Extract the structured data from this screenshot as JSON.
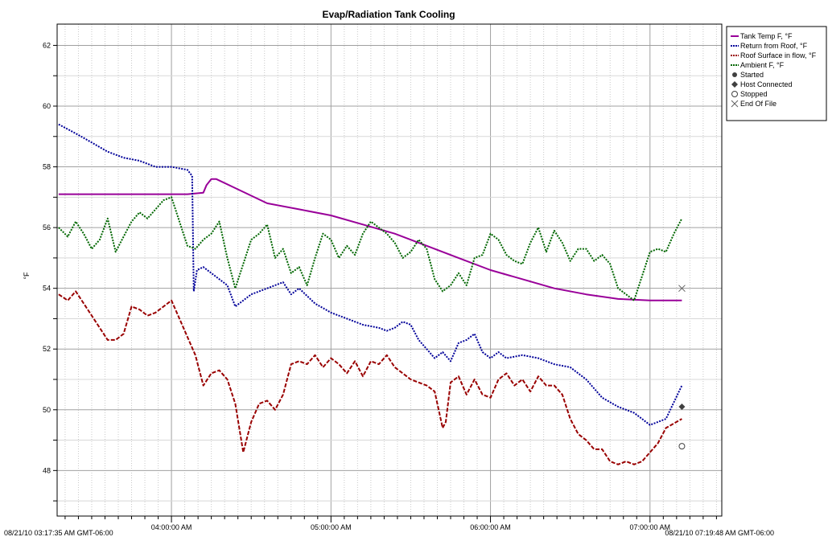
{
  "chart_data": {
    "type": "line",
    "title": "Evap/Radiation Tank Cooling",
    "ylabel": "°F",
    "ylim": [
      46.5,
      62.7
    ],
    "yticks": [
      48,
      50,
      52,
      54,
      56,
      58,
      60,
      62
    ],
    "xlim_hours": [
      3.2833,
      7.45
    ],
    "xticks": [
      {
        "hour": 4.0,
        "label": "04:00:00 AM"
      },
      {
        "hour": 5.0,
        "label": "05:00:00 AM"
      },
      {
        "hour": 6.0,
        "label": "06:00:00 AM"
      },
      {
        "hour": 7.0,
        "label": "07:00:00 AM"
      }
    ],
    "start_label": "08/21/10 03:17:35 AM GMT-06:00",
    "end_label": "08/21/10 07:19:48 AM GMT-06:00",
    "grid": true,
    "legend_position": "top-right",
    "series": [
      {
        "name": "Tank Temp F, °F",
        "color": "#990099",
        "dash": "solid",
        "x": [
          3.293,
          3.5,
          3.7,
          3.8,
          3.85,
          3.9,
          4.0,
          4.1,
          4.2,
          4.22,
          4.25,
          4.28,
          4.4,
          4.6,
          4.8,
          5.0,
          5.2,
          5.4,
          5.6,
          5.8,
          6.0,
          6.2,
          6.4,
          6.6,
          6.8,
          7.0,
          7.2
        ],
        "y": [
          57.1,
          57.1,
          57.1,
          57.1,
          57.1,
          57.1,
          57.1,
          57.1,
          57.15,
          57.4,
          57.6,
          57.6,
          57.3,
          56.8,
          56.6,
          56.4,
          56.1,
          55.8,
          55.4,
          55.0,
          54.6,
          54.3,
          54.0,
          53.8,
          53.65,
          53.6,
          53.6
        ]
      },
      {
        "name": "Return from Roof, °F",
        "color": "#000099",
        "dash": "dot",
        "x": [
          3.293,
          3.4,
          3.5,
          3.6,
          3.7,
          3.8,
          3.9,
          4.0,
          4.1,
          4.13,
          4.14,
          4.16,
          4.2,
          4.3,
          4.35,
          4.4,
          4.45,
          4.5,
          4.6,
          4.7,
          4.75,
          4.8,
          4.9,
          5.0,
          5.1,
          5.2,
          5.3,
          5.35,
          5.4,
          5.45,
          5.5,
          5.55,
          5.6,
          5.65,
          5.7,
          5.75,
          5.8,
          5.85,
          5.9,
          5.95,
          6.0,
          6.05,
          6.1,
          6.2,
          6.3,
          6.4,
          6.5,
          6.6,
          6.7,
          6.8,
          6.9,
          6.95,
          7.0,
          7.1,
          7.2
        ],
        "y": [
          59.4,
          59.1,
          58.8,
          58.5,
          58.3,
          58.2,
          58.0,
          58.0,
          57.9,
          57.7,
          53.9,
          54.6,
          54.7,
          54.3,
          54.1,
          53.4,
          53.6,
          53.8,
          54.0,
          54.2,
          53.8,
          54.0,
          53.5,
          53.2,
          53.0,
          52.8,
          52.7,
          52.6,
          52.7,
          52.9,
          52.8,
          52.3,
          52.0,
          51.7,
          51.9,
          51.6,
          52.2,
          52.3,
          52.5,
          51.9,
          51.7,
          51.9,
          51.7,
          51.8,
          51.7,
          51.5,
          51.4,
          51.0,
          50.4,
          50.1,
          49.9,
          49.7,
          49.5,
          49.7,
          50.8
        ]
      },
      {
        "name": "Roof Surface in flow, °F",
        "color": "#990000",
        "dash": "dash",
        "x": [
          3.293,
          3.35,
          3.4,
          3.5,
          3.6,
          3.65,
          3.7,
          3.75,
          3.8,
          3.85,
          3.9,
          4.0,
          4.05,
          4.1,
          4.15,
          4.2,
          4.25,
          4.3,
          4.35,
          4.4,
          4.45,
          4.5,
          4.55,
          4.6,
          4.65,
          4.7,
          4.75,
          4.8,
          4.85,
          4.9,
          4.95,
          5.0,
          5.05,
          5.1,
          5.15,
          5.2,
          5.25,
          5.3,
          5.35,
          5.4,
          5.45,
          5.5,
          5.55,
          5.6,
          5.65,
          5.7,
          5.72,
          5.75,
          5.8,
          5.85,
          5.9,
          5.95,
          6.0,
          6.05,
          6.1,
          6.15,
          6.2,
          6.25,
          6.3,
          6.35,
          6.4,
          6.45,
          6.5,
          6.55,
          6.6,
          6.65,
          6.7,
          6.75,
          6.8,
          6.85,
          6.9,
          6.95,
          7.0,
          7.05,
          7.1,
          7.2
        ],
        "y": [
          53.8,
          53.6,
          53.9,
          53.1,
          52.3,
          52.3,
          52.5,
          53.4,
          53.3,
          53.1,
          53.2,
          53.6,
          53.0,
          52.4,
          51.8,
          50.8,
          51.2,
          51.3,
          51.0,
          50.2,
          48.6,
          49.6,
          50.2,
          50.3,
          50.0,
          50.5,
          51.5,
          51.6,
          51.5,
          51.8,
          51.4,
          51.7,
          51.5,
          51.2,
          51.6,
          51.1,
          51.6,
          51.5,
          51.8,
          51.4,
          51.2,
          51.0,
          50.9,
          50.8,
          50.6,
          49.4,
          49.6,
          50.9,
          51.1,
          50.5,
          51.0,
          50.5,
          50.4,
          51.0,
          51.2,
          50.8,
          51.0,
          50.6,
          51.1,
          50.8,
          50.8,
          50.5,
          49.7,
          49.2,
          49.0,
          48.7,
          48.7,
          48.3,
          48.2,
          48.3,
          48.2,
          48.3,
          48.6,
          48.9,
          49.4,
          49.7
        ]
      },
      {
        "name": "Ambient F, °F",
        "color": "#006600",
        "dash": "dot",
        "x": [
          3.293,
          3.35,
          3.4,
          3.45,
          3.5,
          3.55,
          3.6,
          3.65,
          3.7,
          3.75,
          3.8,
          3.85,
          3.9,
          3.95,
          4.0,
          4.05,
          4.1,
          4.15,
          4.2,
          4.25,
          4.3,
          4.35,
          4.4,
          4.45,
          4.5,
          4.55,
          4.6,
          4.65,
          4.7,
          4.75,
          4.8,
          4.85,
          4.9,
          4.95,
          5.0,
          5.05,
          5.1,
          5.15,
          5.2,
          5.25,
          5.3,
          5.35,
          5.4,
          5.45,
          5.5,
          5.55,
          5.6,
          5.65,
          5.7,
          5.75,
          5.8,
          5.85,
          5.9,
          5.95,
          6.0,
          6.05,
          6.1,
          6.15,
          6.2,
          6.25,
          6.3,
          6.35,
          6.4,
          6.45,
          6.5,
          6.55,
          6.6,
          6.65,
          6.7,
          6.75,
          6.8,
          6.85,
          6.9,
          6.95,
          7.0,
          7.05,
          7.1,
          7.15,
          7.2
        ],
        "y": [
          56.0,
          55.7,
          56.2,
          55.8,
          55.3,
          55.6,
          56.3,
          55.2,
          55.7,
          56.2,
          56.5,
          56.3,
          56.6,
          56.9,
          57.0,
          56.2,
          55.4,
          55.3,
          55.6,
          55.8,
          56.2,
          55.0,
          54.0,
          54.8,
          55.6,
          55.8,
          56.1,
          55.0,
          55.3,
          54.5,
          54.7,
          54.1,
          55.0,
          55.8,
          55.6,
          55.0,
          55.4,
          55.1,
          55.8,
          56.2,
          56.0,
          55.8,
          55.5,
          55.0,
          55.2,
          55.6,
          55.3,
          54.3,
          53.9,
          54.1,
          54.5,
          54.1,
          55.0,
          55.1,
          55.8,
          55.6,
          55.1,
          54.9,
          54.8,
          55.5,
          56.0,
          55.2,
          55.9,
          55.5,
          54.9,
          55.3,
          55.3,
          54.9,
          55.1,
          54.8,
          54.0,
          53.8,
          53.6,
          54.4,
          55.2,
          55.3,
          55.2,
          55.8,
          56.3
        ]
      }
    ],
    "markers": [
      {
        "name": "Started",
        "symbol": "filled-circle"
      },
      {
        "name": "Host Connected",
        "symbol": "filled-diamond",
        "x": 7.2,
        "y": 50.1
      },
      {
        "name": "Stopped",
        "symbol": "open-circle",
        "x": 7.2,
        "y": 48.8
      },
      {
        "name": "End Of File",
        "symbol": "x",
        "x": 7.2,
        "y": 54.0
      }
    ]
  }
}
